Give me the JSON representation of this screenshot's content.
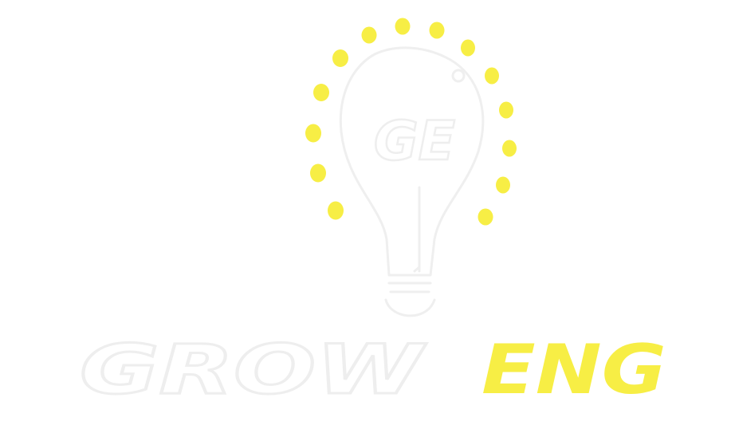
{
  "logo": {
    "monogram": "GE",
    "word_left": "GROW",
    "word_right": "ENG"
  },
  "colors": {
    "background": "#ffffff",
    "outline": "#f1f1f1",
    "accent_yellow": "#f7ee45"
  },
  "icons": {
    "bulb": "lightbulb-icon",
    "rays": "light-rays"
  }
}
